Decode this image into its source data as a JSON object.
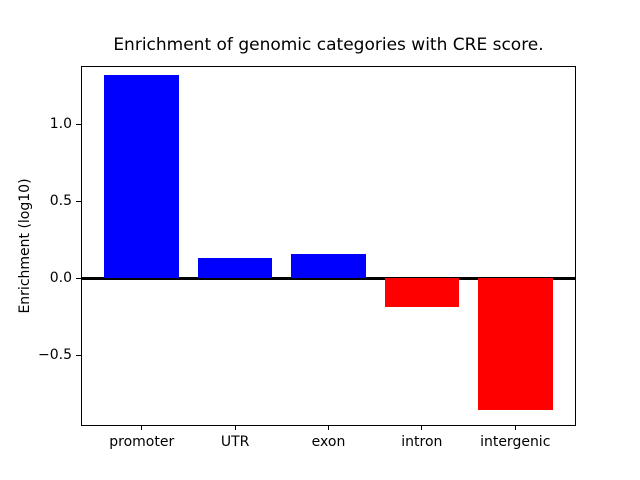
{
  "figure": {
    "background": "#ffffff"
  },
  "chart_data": {
    "type": "bar",
    "title": "Enrichment of genomic categories with CRE score.",
    "ylabel": "Enrichment (log10)",
    "categories": [
      "promoter",
      "UTR",
      "exon",
      "intron",
      "intergenic"
    ],
    "values": [
      1.32,
      0.135,
      0.16,
      -0.185,
      -0.85
    ],
    "bar_colors": [
      "#0000ff",
      "#0000ff",
      "#0000ff",
      "#ff0000",
      "#ff0000"
    ],
    "positive_color": "#0000ff",
    "negative_color": "#ff0000",
    "bar_width_units": 0.8,
    "xlim": [
      -0.64,
      4.64
    ],
    "ylim": [
      -0.95,
      1.37
    ],
    "yticks": [
      -0.5,
      0.0,
      0.5,
      1.0
    ],
    "ytick_labels": [
      "−0.5",
      "0.0",
      "0.5",
      "1.0"
    ],
    "zero_line": {
      "y": 0,
      "color": "#000000"
    },
    "grid": false,
    "legend_visible": false,
    "spine_color": "#000000",
    "text_color": "#000000"
  }
}
